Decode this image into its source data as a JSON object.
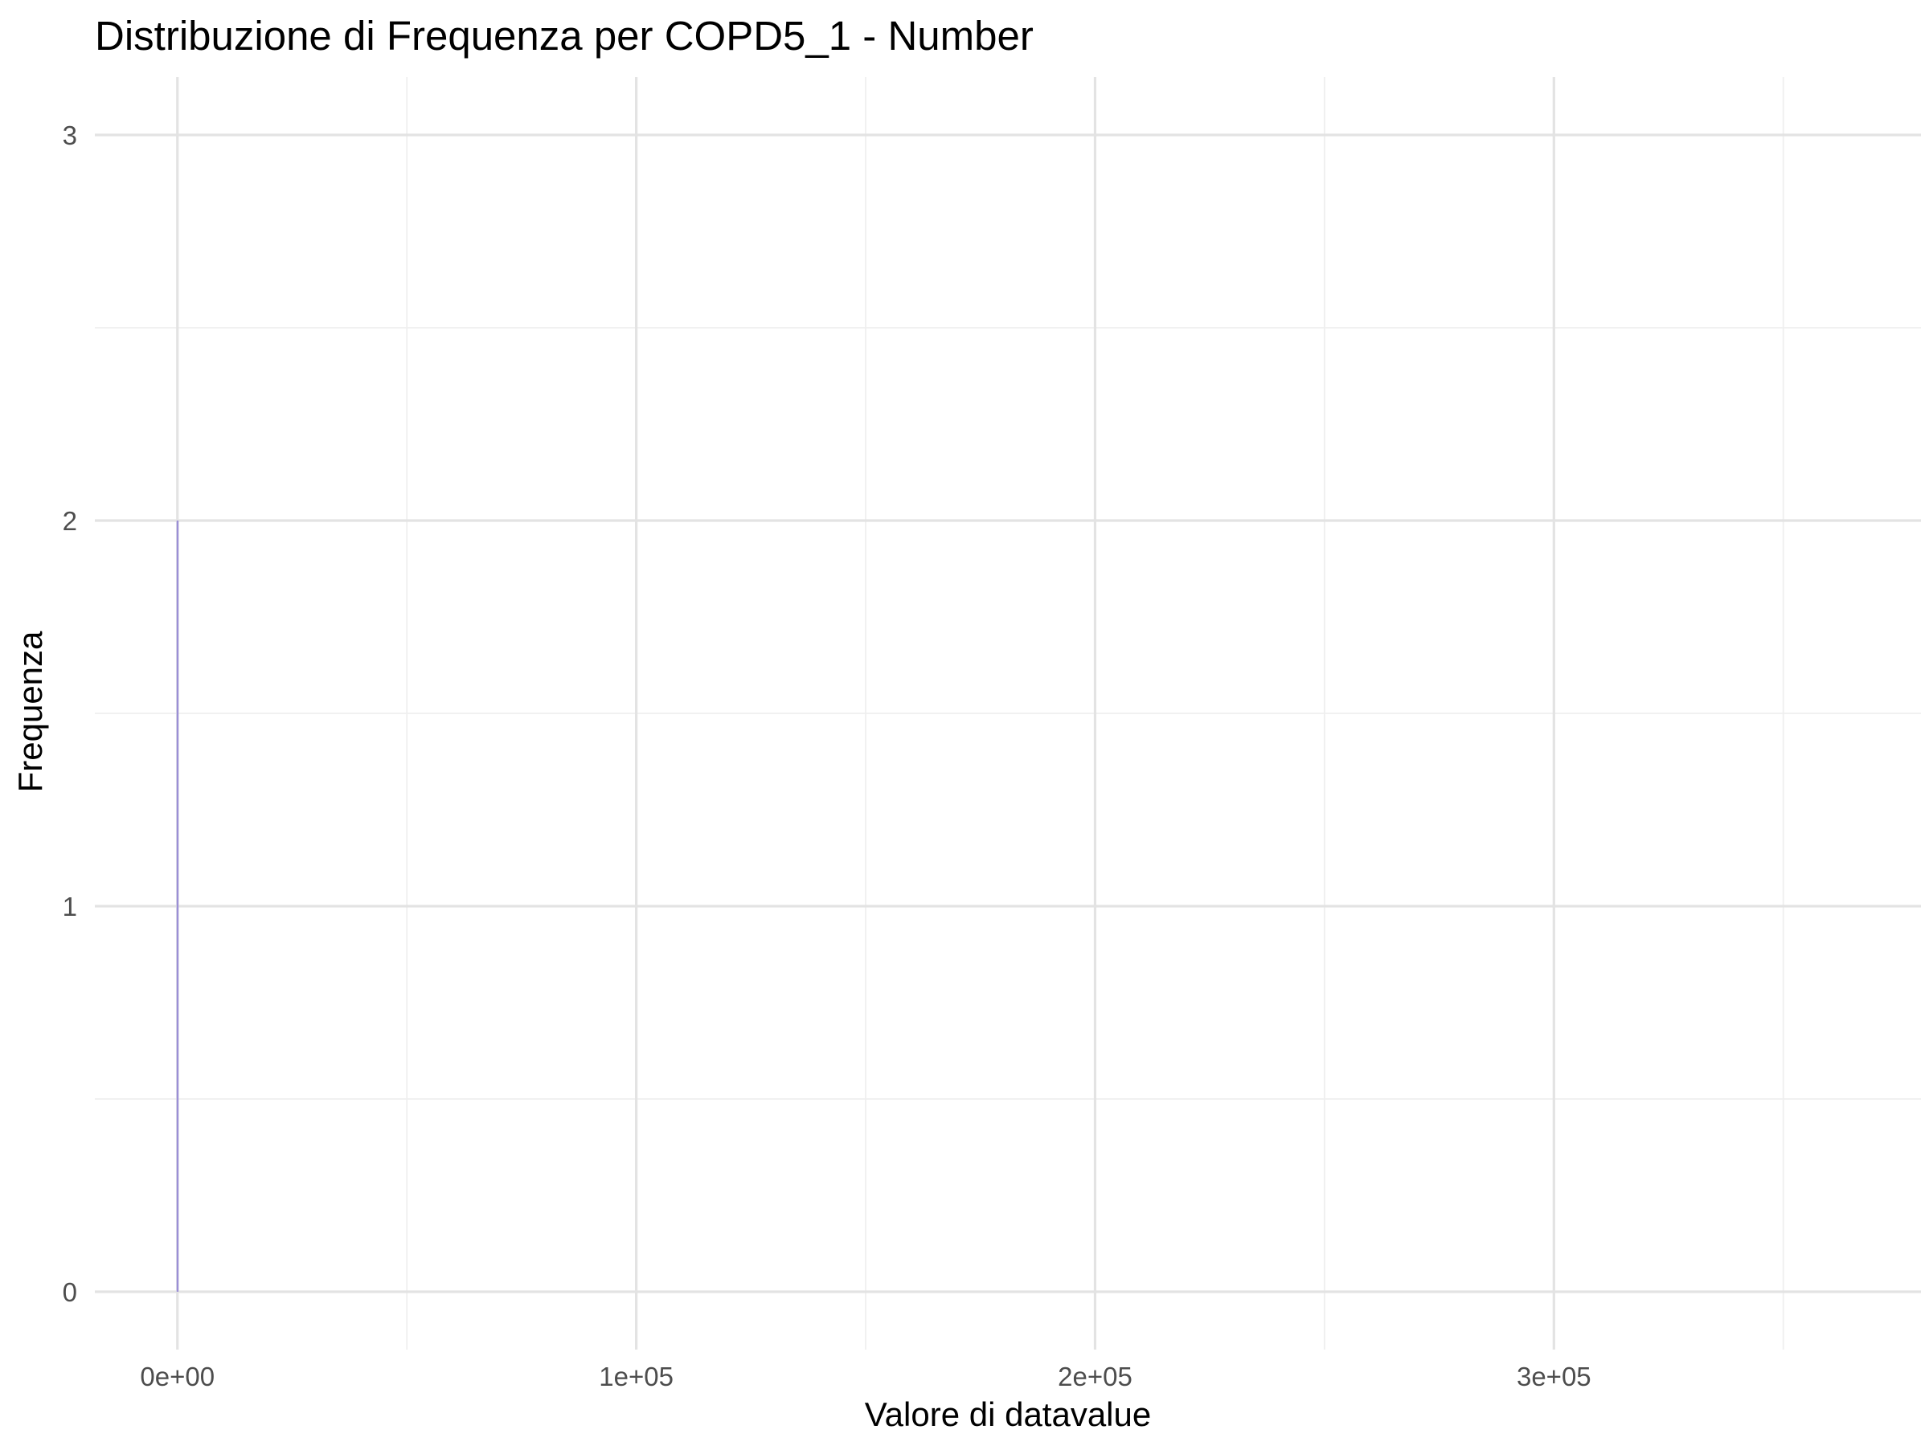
{
  "chart_data": {
    "type": "bar",
    "title": "Distribuzione di Frequenza per COPD5_1 - Number",
    "xlabel": "Valore di datavalue",
    "ylabel": "Frequenza",
    "xlim": [
      -18000,
      380000
    ],
    "ylim": [
      -0.15,
      3.15
    ],
    "x_ticks": [
      0,
      100000,
      200000,
      300000
    ],
    "x_tick_labels": [
      "0e+00",
      "1e+05",
      "2e+05",
      "3e+05"
    ],
    "x_minor_ticks": [
      50000,
      150000,
      250000,
      350000
    ],
    "y_ticks": [
      0,
      1,
      2,
      3
    ],
    "y_tick_labels": [
      "0",
      "1",
      "2",
      "3"
    ],
    "y_minor_ticks": [
      0.5,
      1.5,
      2.5
    ],
    "bins": [
      {
        "x": 0,
        "count": 2
      }
    ],
    "bar_color": "#9b8fd6",
    "grid": true
  }
}
